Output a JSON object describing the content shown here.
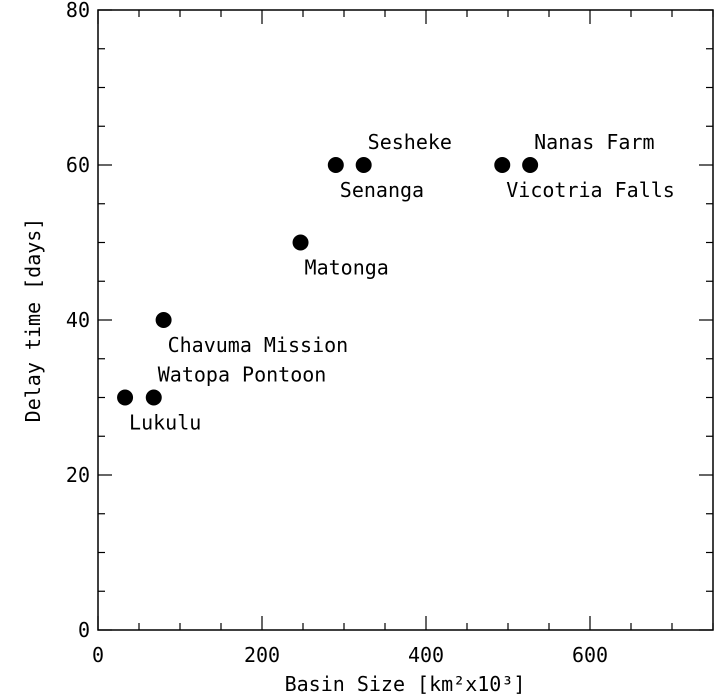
{
  "chart_data": {
    "type": "scatter",
    "xlabel": "Basin Size [km²x10³]",
    "ylabel": "Delay time [days]",
    "xlim": [
      0,
      750
    ],
    "ylim": [
      0,
      80
    ],
    "x_ticks": [
      0,
      200,
      400,
      600
    ],
    "y_ticks": [
      0,
      20,
      40,
      60,
      80
    ],
    "grid": false,
    "points": [
      {
        "x": 33,
        "y": 30,
        "label": "Lukulu",
        "label_side": "below"
      },
      {
        "x": 68,
        "y": 30,
        "label": "Watopa Pontoon",
        "label_side": "above"
      },
      {
        "x": 80,
        "y": 40,
        "label": "Chavuma Mission",
        "label_side": "below"
      },
      {
        "x": 247,
        "y": 50,
        "label": "Matonga",
        "label_side": "below"
      },
      {
        "x": 290,
        "y": 60,
        "label": "Senanga",
        "label_side": "below"
      },
      {
        "x": 324,
        "y": 60,
        "label": "Sesheke",
        "label_side": "above"
      },
      {
        "x": 493,
        "y": 60,
        "label": "Vicotria Falls",
        "label_side": "below"
      },
      {
        "x": 527,
        "y": 60,
        "label": "Nanas Farm",
        "label_side": "above"
      }
    ],
    "marker_color": "#000000"
  }
}
